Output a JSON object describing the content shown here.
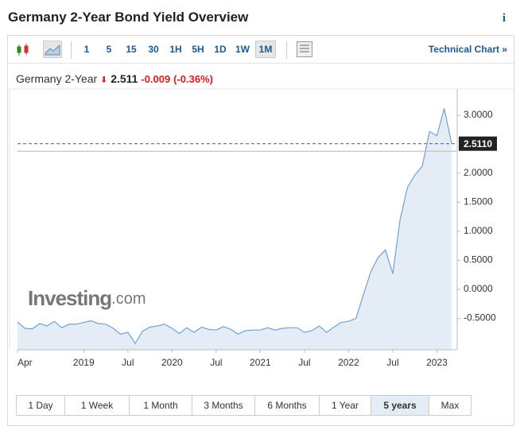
{
  "header": {
    "title": "Germany 2-Year Bond Yield Overview",
    "info": "i"
  },
  "toolbar": {
    "intervals": [
      "1",
      "5",
      "15",
      "30",
      "1H",
      "5H",
      "1D",
      "1W",
      "1M"
    ],
    "selected": 8,
    "link": "Technical Chart »"
  },
  "quote": {
    "name": "Germany 2-Year",
    "price": "2.511",
    "change": "-0.009",
    "change_pct": "(-0.36%)"
  },
  "chart_data": {
    "type": "line",
    "watermark": [
      "Investing",
      ".com"
    ],
    "categories": [
      "Apr",
      null,
      null,
      null,
      null,
      null,
      null,
      null,
      null,
      "2019",
      null,
      null,
      null,
      null,
      null,
      "Jul",
      null,
      null,
      null,
      null,
      null,
      "2020",
      null,
      null,
      null,
      null,
      null,
      "Jul",
      null,
      null,
      null,
      null,
      null,
      "2021",
      null,
      null,
      null,
      null,
      null,
      "Jul",
      null,
      null,
      null,
      null,
      null,
      "2022",
      null,
      null,
      null,
      null,
      null,
      "Jul",
      null,
      null,
      null,
      null,
      null,
      "2023",
      null,
      null
    ],
    "series": [
      {
        "color": "#6fa3d4",
        "fill": "#e4edf6",
        "values": [
          -0.56,
          -0.67,
          -0.68,
          -0.59,
          -0.63,
          -0.55,
          -0.66,
          -0.6,
          -0.6,
          -0.57,
          -0.54,
          -0.59,
          -0.6,
          -0.67,
          -0.77,
          -0.74,
          -0.93,
          -0.72,
          -0.65,
          -0.63,
          -0.6,
          -0.67,
          -0.76,
          -0.66,
          -0.74,
          -0.65,
          -0.69,
          -0.7,
          -0.64,
          -0.69,
          -0.77,
          -0.71,
          -0.7,
          -0.7,
          -0.66,
          -0.7,
          -0.67,
          -0.66,
          -0.66,
          -0.74,
          -0.71,
          -0.63,
          -0.74,
          -0.65,
          -0.57,
          -0.55,
          -0.5,
          -0.1,
          0.3,
          0.55,
          0.68,
          0.27,
          1.2,
          1.76,
          1.97,
          2.12,
          2.72,
          2.65,
          3.12,
          2.51
        ]
      }
    ],
    "ylim": [
      -1.04,
      3.37
    ],
    "yticks": [
      {
        "value": -0.5,
        "label": "-0.5000"
      },
      {
        "value": 0,
        "label": "0.0000"
      },
      {
        "value": 0.5,
        "label": "0.5000"
      },
      {
        "value": 1,
        "label": "1.0000"
      },
      {
        "value": 1.5,
        "label": "1.5000"
      },
      {
        "value": 2,
        "label": "2.0000"
      },
      {
        "value": 3,
        "label": "3.0000"
      }
    ],
    "last_price": {
      "value": 2.511,
      "label": "2.5110",
      "color": "#555577"
    },
    "reference_line": {
      "value": 2.38,
      "color": "#f2a0a0"
    }
  },
  "ranges": {
    "buttons": [
      "1 Day",
      "1 Week",
      "1 Month",
      "3 Months",
      "6 Months",
      "1 Year",
      "5 years",
      "Max"
    ],
    "selected": 6
  }
}
